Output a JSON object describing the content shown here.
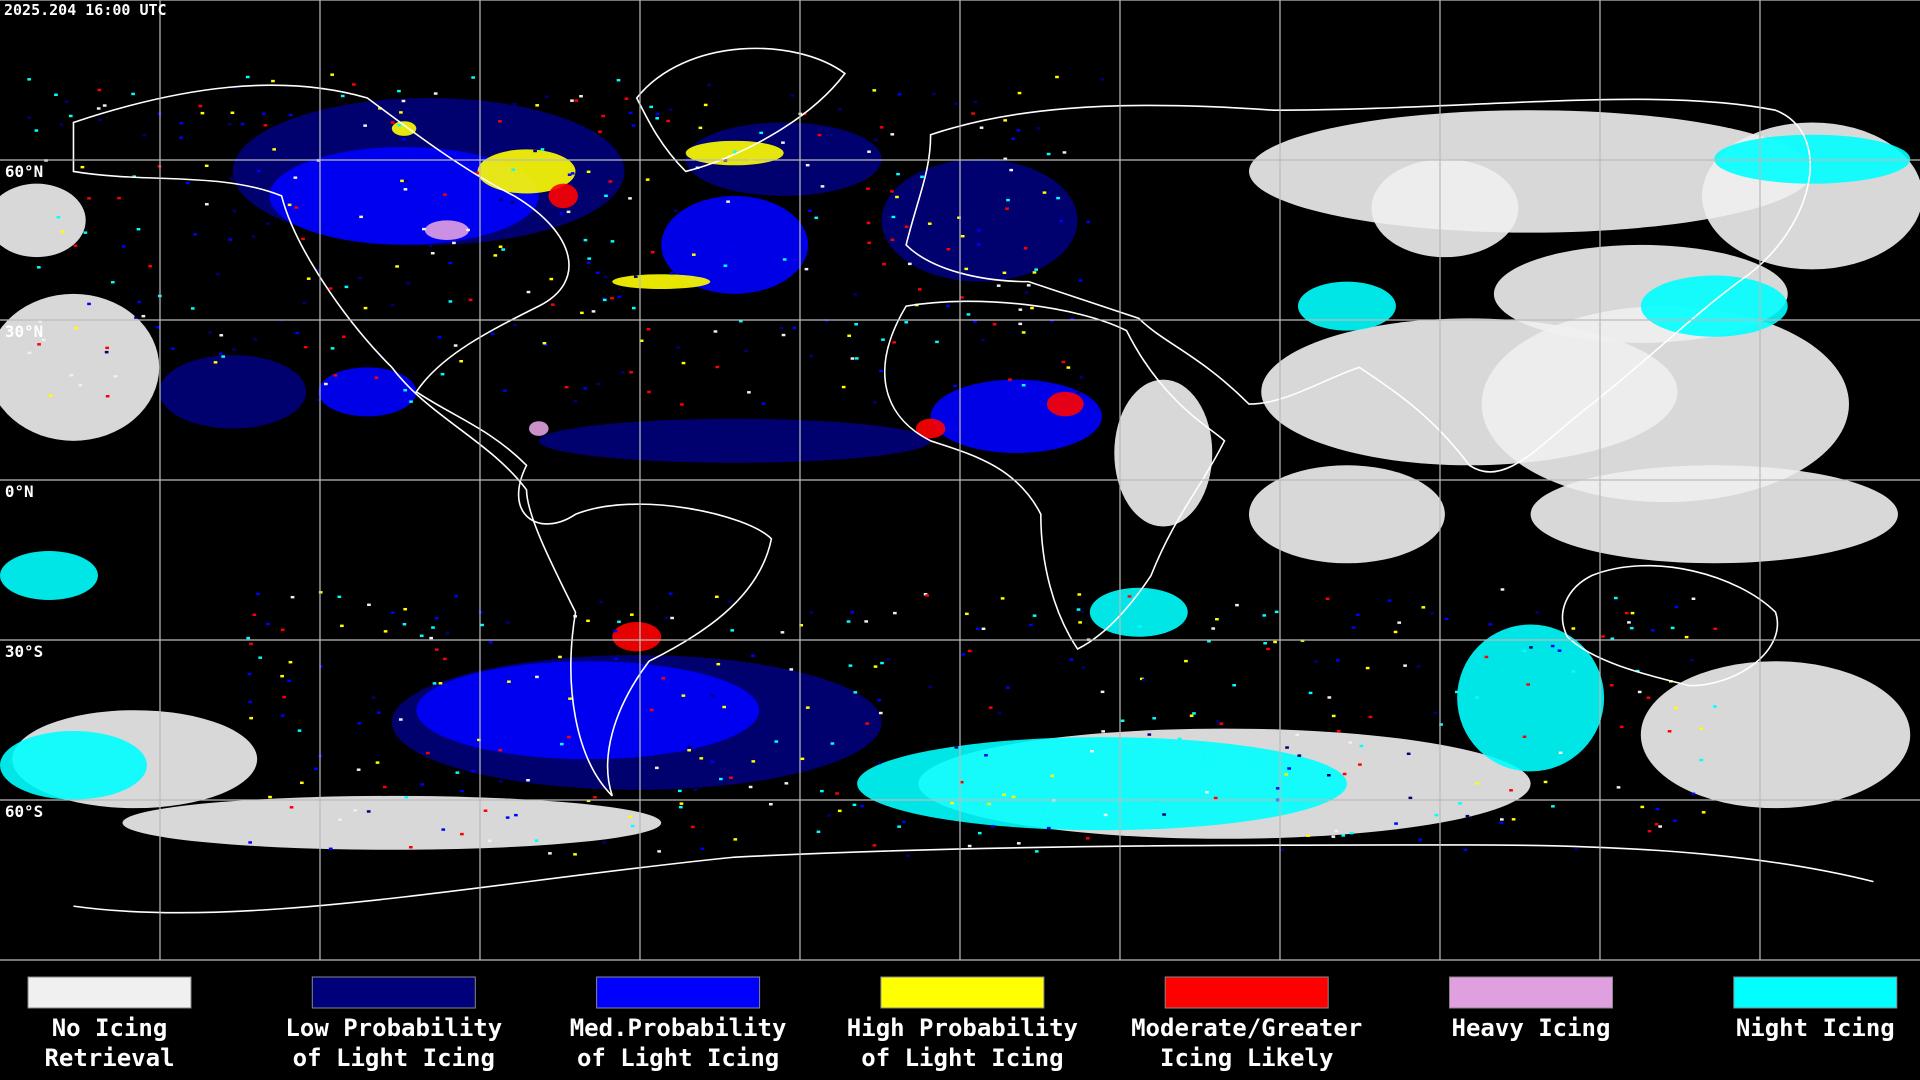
{
  "header": {
    "timestamp": "2025.204 16:00 UTC"
  },
  "map": {
    "lat_labels": [
      "60°N",
      "30°N",
      "0°N",
      "30°S",
      "60°S"
    ]
  },
  "legend": [
    {
      "lines": [
        "No Icing",
        "Retrieval"
      ],
      "color": "#f0f0f0"
    },
    {
      "lines": [
        "Low Probability",
        "of Light Icing"
      ],
      "color": "#00007a"
    },
    {
      "lines": [
        "Med.Probability",
        "of Light Icing"
      ],
      "color": "#0000ff"
    },
    {
      "lines": [
        "High Probability",
        "of Light Icing"
      ],
      "color": "#ffff00"
    },
    {
      "lines": [
        "Moderate/Greater",
        "Icing Likely"
      ],
      "color": "#ff0000"
    },
    {
      "lines": [
        "Heavy Icing"
      ],
      "color": "#e0a0e0"
    },
    {
      "lines": [
        "Night Icing"
      ],
      "color": "#00ffff"
    }
  ]
}
